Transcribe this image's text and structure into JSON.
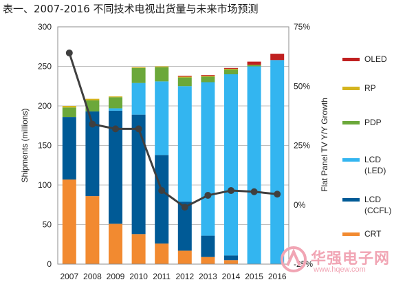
{
  "page": {
    "title": "表一、2007-2016 不同技术电视出货量与未来市场预测"
  },
  "chart_data": {
    "type": "bar",
    "stacked": true,
    "categories": [
      "2007",
      "2008",
      "2009",
      "2010",
      "2011",
      "2012",
      "2013",
      "2014",
      "2015",
      "2016"
    ],
    "series": [
      {
        "name": "CRT",
        "color": "#f28a30",
        "values": [
          107,
          86,
          51,
          38,
          26,
          17,
          9,
          5,
          0,
          0
        ]
      },
      {
        "name": "LCD\n(CCFL)",
        "color": "#005a96",
        "values": [
          79,
          107,
          143,
          151,
          112,
          62,
          27,
          6,
          0,
          0
        ]
      },
      {
        "name": "LCD\n(LED)",
        "color": "#33b5f0",
        "values": [
          0,
          0,
          3,
          40,
          93,
          146,
          194,
          229,
          250,
          258
        ]
      },
      {
        "name": "PDP",
        "color": "#6ba83a",
        "values": [
          12,
          14,
          14,
          19,
          18,
          11,
          7,
          6,
          2,
          0
        ]
      },
      {
        "name": "RP",
        "color": "#d4b41e",
        "values": [
          2,
          2,
          1,
          1,
          1,
          1,
          1,
          1,
          0,
          0
        ]
      },
      {
        "name": "OLED",
        "color": "#c02020",
        "values": [
          0,
          0,
          0,
          0,
          0,
          1,
          1,
          1,
          4,
          8
        ]
      }
    ],
    "line": {
      "name": "Flat Panel TV Y/Y Growth",
      "color": "#3f3f3f",
      "values": [
        64,
        34,
        32,
        32,
        6,
        -1,
        4,
        6,
        5.5,
        4.5
      ]
    },
    "ylabel": "Shipments (millions)",
    "y2label": "Flat Panel TV Y/Y Growth",
    "ylim": [
      0,
      300
    ],
    "yticks": [
      0,
      50,
      100,
      150,
      200,
      250,
      300
    ],
    "y2lim": [
      -25,
      75
    ],
    "y2ticks": [
      "-25%",
      "0%",
      "25%",
      "50%",
      "75%"
    ],
    "grid": true,
    "legend_position": "right",
    "legend_order": [
      "OLED",
      "RP",
      "PDP",
      "LCD\n(LED)",
      "LCD\n(CCFL)",
      "CRT"
    ]
  },
  "watermark": {
    "text": "华强电子网",
    "url": "www.hqew.com"
  }
}
